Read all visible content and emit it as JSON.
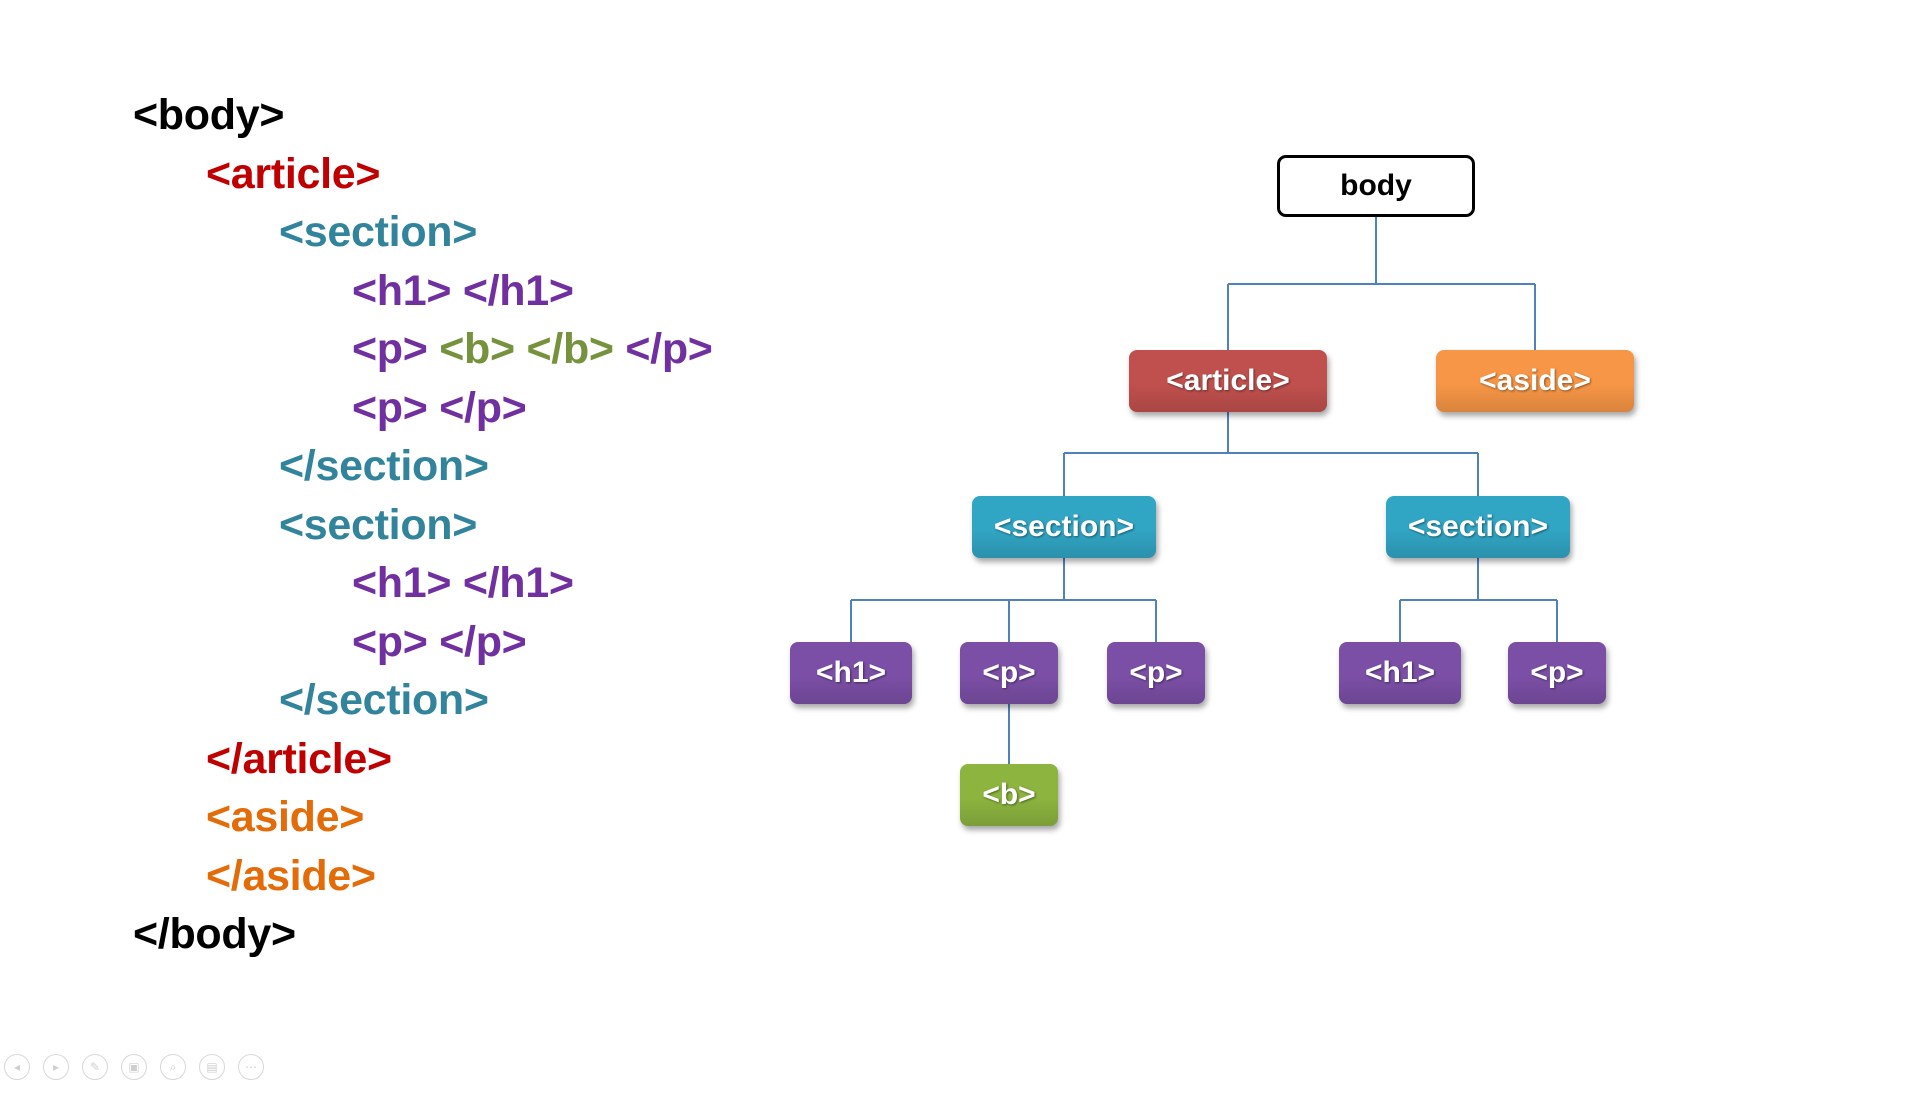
{
  "code": {
    "lines": [
      {
        "indent": 0,
        "segs": [
          {
            "text": "<body>",
            "color": "#000000"
          }
        ]
      },
      {
        "indent": 1,
        "segs": [
          {
            "text": "<article>",
            "color": "#c00000"
          }
        ]
      },
      {
        "indent": 2,
        "segs": [
          {
            "text": "<section>",
            "color": "#31849b"
          }
        ]
      },
      {
        "indent": 3,
        "segs": [
          {
            "text": "<h1> </h1>",
            "color": "#7030a0"
          }
        ]
      },
      {
        "indent": 3,
        "segs": [
          {
            "text": "<p> ",
            "color": "#7030a0"
          },
          {
            "text": "<b> </b> ",
            "color": "#76923c"
          },
          {
            "text": "</p>",
            "color": "#7030a0"
          }
        ]
      },
      {
        "indent": 3,
        "segs": [
          {
            "text": "<p> </p>",
            "color": "#7030a0"
          }
        ]
      },
      {
        "indent": 2,
        "segs": [
          {
            "text": "</section>",
            "color": "#31849b"
          }
        ]
      },
      {
        "indent": 2,
        "segs": [
          {
            "text": "<section>",
            "color": "#31849b"
          }
        ]
      },
      {
        "indent": 3,
        "segs": [
          {
            "text": "<h1> </h1>",
            "color": "#7030a0"
          }
        ]
      },
      {
        "indent": 3,
        "segs": [
          {
            "text": "<p> </p>",
            "color": "#7030a0"
          }
        ]
      },
      {
        "indent": 2,
        "segs": [
          {
            "text": "</section>",
            "color": "#31849b"
          }
        ]
      },
      {
        "indent": 1,
        "segs": [
          {
            "text": "</article>",
            "color": "#c00000"
          }
        ]
      },
      {
        "indent": 1,
        "segs": [
          {
            "text": "<aside>",
            "color": "#e36c09"
          }
        ]
      },
      {
        "indent": 1,
        "segs": [
          {
            "text": "</aside>",
            "color": "#e36c09"
          }
        ]
      },
      {
        "indent": 0,
        "segs": [
          {
            "text": "</body>",
            "color": "#000000"
          }
        ]
      }
    ]
  },
  "tree": {
    "colors": {
      "article": "#c0504d",
      "aside": "#f79646",
      "section": "#31a5c4",
      "purple": "#7b4fa6",
      "green": "#8cb43f",
      "connector": "#4f81bd"
    },
    "nodes": [
      {
        "id": "body",
        "label": "body",
        "kind": "root",
        "parent": null
      },
      {
        "id": "article",
        "label": "<article>",
        "kind": "article",
        "parent": "body"
      },
      {
        "id": "aside",
        "label": "<aside>",
        "kind": "aside",
        "parent": "body"
      },
      {
        "id": "section1",
        "label": "<section>",
        "kind": "section",
        "parent": "article"
      },
      {
        "id": "section2",
        "label": "<section>",
        "kind": "section",
        "parent": "article"
      },
      {
        "id": "h1a",
        "label": "<h1>",
        "kind": "purple",
        "parent": "section1"
      },
      {
        "id": "p1",
        "label": "<p>",
        "kind": "purple",
        "parent": "section1"
      },
      {
        "id": "p2",
        "label": "<p>",
        "kind": "purple",
        "parent": "section1"
      },
      {
        "id": "h1b",
        "label": "<h1>",
        "kind": "purple",
        "parent": "section2"
      },
      {
        "id": "p3",
        "label": "<p>",
        "kind": "purple",
        "parent": "section2"
      },
      {
        "id": "b",
        "label": "<b>",
        "kind": "green",
        "parent": "p1"
      }
    ]
  },
  "controls": [
    {
      "icon": "previous-icon",
      "glyph": "◂"
    },
    {
      "icon": "next-icon",
      "glyph": "▸"
    },
    {
      "icon": "pen-icon",
      "glyph": "✎"
    },
    {
      "icon": "slides-icon",
      "glyph": "▣"
    },
    {
      "icon": "zoom-icon",
      "glyph": "⌕"
    },
    {
      "icon": "subtitles-icon",
      "glyph": "▤"
    },
    {
      "icon": "more-icon",
      "glyph": "⋯"
    }
  ]
}
